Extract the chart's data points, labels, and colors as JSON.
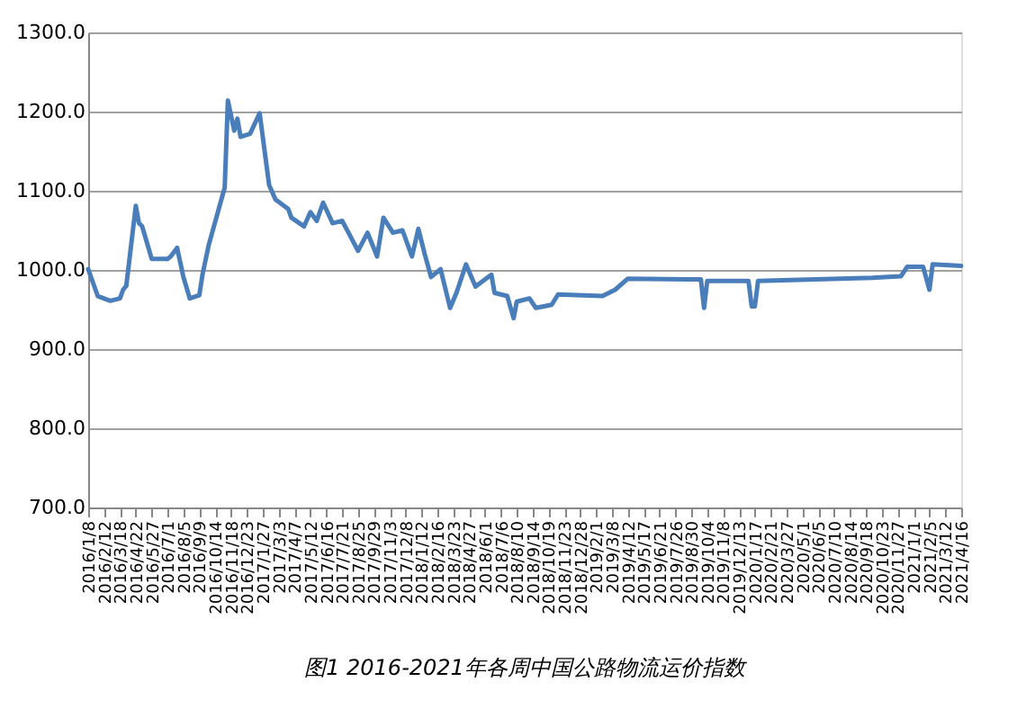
{
  "chart_data": {
    "type": "line",
    "title": "图1 2016-2021年各周中国公路物流运价指数",
    "x": [
      "2016-01-08",
      "2016-01-29",
      "2016-02-26",
      "2016-03-18",
      "2016-03-25",
      "2016-04-01",
      "2016-04-22",
      "2016-04-29",
      "2016-05-06",
      "2016-05-27",
      "2016-07-01",
      "2016-07-08",
      "2016-07-22",
      "2016-08-05",
      "2016-08-19",
      "2016-09-09",
      "2016-09-16",
      "2016-09-30",
      "2016-11-04",
      "2016-11-11",
      "2016-11-25",
      "2016-12-02",
      "2016-12-09",
      "2016-12-30",
      "2017-01-20",
      "2017-02-10",
      "2017-02-24",
      "2017-03-24",
      "2017-03-31",
      "2017-04-28",
      "2017-05-12",
      "2017-05-26",
      "2017-06-09",
      "2017-06-30",
      "2017-07-21",
      "2017-08-04",
      "2017-08-25",
      "2017-09-15",
      "2017-10-06",
      "2017-10-20",
      "2017-11-10",
      "2017-12-01",
      "2017-12-22",
      "2018-01-05",
      "2018-01-19",
      "2018-02-02",
      "2018-02-23",
      "2018-03-16",
      "2018-03-30",
      "2018-04-20",
      "2018-05-11",
      "2018-06-15",
      "2018-06-22",
      "2018-07-20",
      "2018-08-03",
      "2018-08-10",
      "2018-09-07",
      "2018-09-21",
      "2018-10-26",
      "2018-11-09",
      "2019-02-15",
      "2019-03-15",
      "2019-04-12",
      "2019-09-20",
      "2019-09-27",
      "2019-10-04",
      "2020-01-03",
      "2020-01-10",
      "2020-01-17",
      "2020-01-24",
      "2020-10-02",
      "2020-12-04",
      "2020-12-18",
      "2021-01-22",
      "2021-02-05",
      "2021-02-12",
      "2021-04-16"
    ],
    "series": [
      {
        "color": "#4a7ebb",
        "values": [
          1001,
          967,
          961,
          964,
          975,
          980,
          1081,
          1059,
          1055,
          1014,
          1014,
          1017,
          1028,
          991,
          964,
          968,
          994,
          1032,
          1104,
          1214,
          1176,
          1191,
          1168,
          1172,
          1198,
          1107,
          1089,
          1077,
          1066,
          1055,
          1073,
          1062,
          1085,
          1059,
          1062,
          1047,
          1024,
          1047,
          1017,
          1066,
          1047,
          1050,
          1017,
          1052,
          1020,
          991,
          1001,
          952,
          971,
          1007,
          979,
          994,
          971,
          967,
          939,
          960,
          964,
          952,
          956,
          969,
          967,
          975,
          989,
          988,
          952,
          986,
          986,
          954,
          954,
          986,
          990,
          992,
          1004,
          1004,
          975,
          1007,
          1005
        ]
      }
    ],
    "xlim": [
      "2016-01-08",
      "2021-04-16"
    ],
    "ylim": [
      700,
      1300
    ],
    "yticks": [
      {
        "value": 700,
        "label": "700.0"
      },
      {
        "value": 800,
        "label": "800.0"
      },
      {
        "value": 900,
        "label": "900.0"
      },
      {
        "value": 1000,
        "label": "1000.0"
      },
      {
        "value": 1100,
        "label": "1100.0"
      },
      {
        "value": 1200,
        "label": "1200.0"
      },
      {
        "value": 1300,
        "label": "1300.0"
      }
    ],
    "xticks": [
      {
        "value": "2016-01-08",
        "label": "2016/1/8"
      },
      {
        "value": "2016-02-12",
        "label": "2016/2/12"
      },
      {
        "value": "2016-03-18",
        "label": "2016/3/18"
      },
      {
        "value": "2016-04-22",
        "label": "2016/4/22"
      },
      {
        "value": "2016-05-27",
        "label": "2016/5/27"
      },
      {
        "value": "2016-07-01",
        "label": "2016/7/1"
      },
      {
        "value": "2016-08-05",
        "label": "2016/8/5"
      },
      {
        "value": "2016-09-09",
        "label": "2016/9/9"
      },
      {
        "value": "2016-10-14",
        "label": "2016/10/14"
      },
      {
        "value": "2016-11-18",
        "label": "2016/11/18"
      },
      {
        "value": "2016-12-23",
        "label": "2016/12/23"
      },
      {
        "value": "2017-01-27",
        "label": "2017/1/27"
      },
      {
        "value": "2017-03-03",
        "label": "2017/3/3"
      },
      {
        "value": "2017-04-07",
        "label": "2017/4/7"
      },
      {
        "value": "2017-05-12",
        "label": "2017/5/12"
      },
      {
        "value": "2017-06-16",
        "label": "2017/6/16"
      },
      {
        "value": "2017-07-21",
        "label": "2017/7/21"
      },
      {
        "value": "2017-08-25",
        "label": "2017/8/25"
      },
      {
        "value": "2017-09-29",
        "label": "2017/9/29"
      },
      {
        "value": "2017-11-03",
        "label": "2017/11/3"
      },
      {
        "value": "2017-12-08",
        "label": "2017/12/8"
      },
      {
        "value": "2018-01-12",
        "label": "2018/1/12"
      },
      {
        "value": "2018-02-16",
        "label": "2018/2/16"
      },
      {
        "value": "2018-03-23",
        "label": "2018/3/23"
      },
      {
        "value": "2018-04-27",
        "label": "2018/4/27"
      },
      {
        "value": "2018-06-01",
        "label": "2018/6/1"
      },
      {
        "value": "2018-07-06",
        "label": "2018/7/6"
      },
      {
        "value": "2018-08-10",
        "label": "2018/8/10"
      },
      {
        "value": "2018-09-14",
        "label": "2018/9/14"
      },
      {
        "value": "2018-10-19",
        "label": "2018/10/19"
      },
      {
        "value": "2018-11-23",
        "label": "2018/11/23"
      },
      {
        "value": "2018-12-28",
        "label": "2018/12/28"
      },
      {
        "value": "2019-02-01",
        "label": "2019/2/1"
      },
      {
        "value": "2019-03-08",
        "label": "2019/3/8"
      },
      {
        "value": "2019-04-12",
        "label": "2019/4/12"
      },
      {
        "value": "2019-05-17",
        "label": "2019/5/17"
      },
      {
        "value": "2019-06-21",
        "label": "2019/6/21"
      },
      {
        "value": "2019-07-26",
        "label": "2019/7/26"
      },
      {
        "value": "2019-08-30",
        "label": "2019/8/30"
      },
      {
        "value": "2019-10-04",
        "label": "2019/10/4"
      },
      {
        "value": "2019-11-08",
        "label": "2019/11/8"
      },
      {
        "value": "2019-12-13",
        "label": "2019/12/13"
      },
      {
        "value": "2020-01-17",
        "label": "2020/1/17"
      },
      {
        "value": "2020-02-21",
        "label": "2020/2/21"
      },
      {
        "value": "2020-03-27",
        "label": "2020/3/27"
      },
      {
        "value": "2020-05-01",
        "label": "2020/5/1"
      },
      {
        "value": "2020-06-05",
        "label": "2020/6/5"
      },
      {
        "value": "2020-07-10",
        "label": "2020/7/10"
      },
      {
        "value": "2020-08-14",
        "label": "2020/8/14"
      },
      {
        "value": "2020-09-18",
        "label": "2020/9/18"
      },
      {
        "value": "2020-10-23",
        "label": "2020/10/23"
      },
      {
        "value": "2020-11-27",
        "label": "2020/11/27"
      },
      {
        "value": "2021-01-01",
        "label": "2021/1/1"
      },
      {
        "value": "2021-02-05",
        "label": "2021/2/5"
      },
      {
        "value": "2021-03-12",
        "label": "2021/3/12"
      },
      {
        "value": "2021-04-16",
        "label": "2021/4/16"
      }
    ],
    "grid": "y",
    "marker": "none",
    "line_style": "solid"
  }
}
